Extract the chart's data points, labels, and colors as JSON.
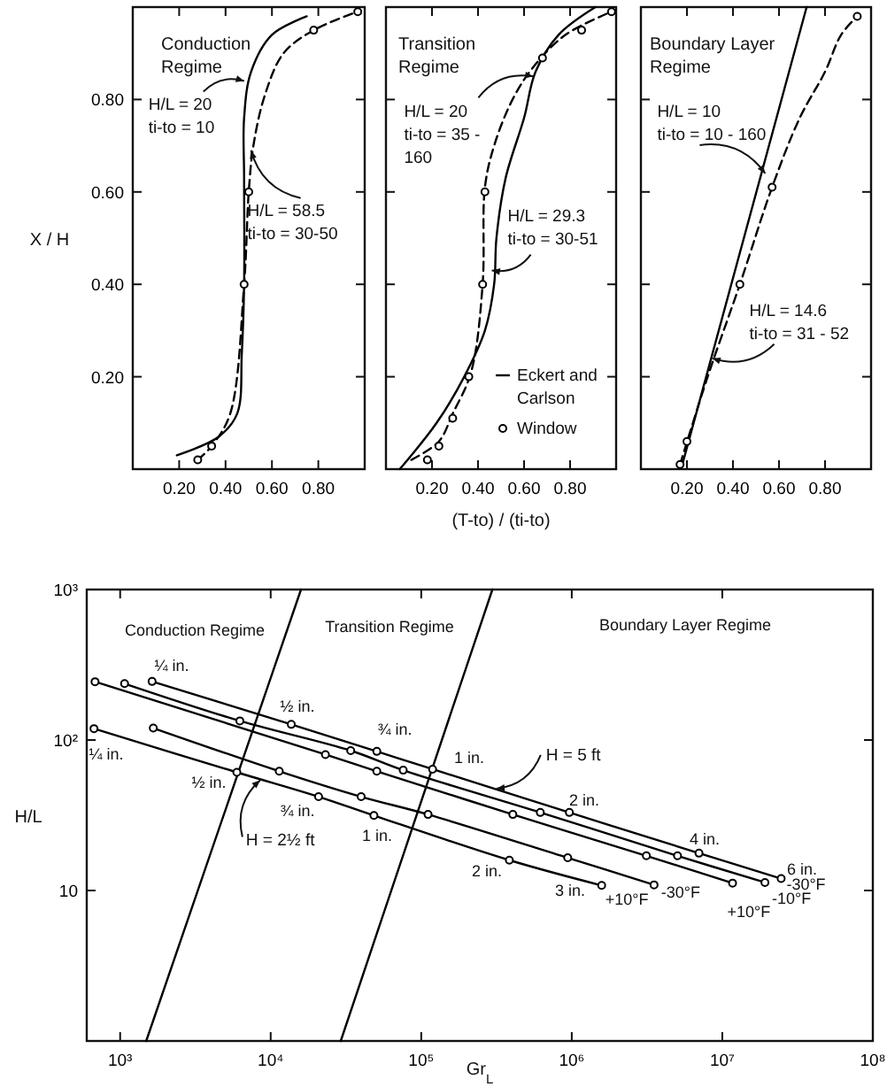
{
  "chart_data": [
    {
      "type": "line",
      "title": "Conduction\nRegime",
      "ylabel": "X / H",
      "xlim": [
        0,
        1
      ],
      "ylim": [
        0,
        1
      ],
      "xticks": [
        {
          "value": 0.2,
          "label": "0.20"
        },
        {
          "value": 0.4,
          "label": "0.40"
        },
        {
          "value": 0.6,
          "label": "0.60"
        },
        {
          "value": 0.8,
          "label": "0.80"
        }
      ],
      "yticks": [
        {
          "value": 0.2,
          "label": "0.20"
        },
        {
          "value": 0.4,
          "label": "0.40"
        },
        {
          "value": 0.6,
          "label": "0.60"
        },
        {
          "value": 0.8,
          "label": "0.80"
        }
      ],
      "series": [
        {
          "color": "#000000",
          "line_style": "solid",
          "x": [
            0.19,
            0.37,
            0.45,
            0.47,
            0.48,
            0.48,
            0.48,
            0.51,
            0.6,
            0.75
          ],
          "values": [
            0.03,
            0.07,
            0.12,
            0.25,
            0.4,
            0.63,
            0.76,
            0.86,
            0.94,
            0.98
          ]
        },
        {
          "color": "#000000",
          "line_style": "dashed",
          "x": [
            0.28,
            0.34,
            0.42,
            0.48,
            0.5,
            0.52,
            0.57,
            0.65,
            0.78,
            0.97
          ],
          "values": [
            0.02,
            0.05,
            0.12,
            0.4,
            0.6,
            0.7,
            0.81,
            0.9,
            0.95,
            0.99
          ]
        },
        {
          "type": "scatter",
          "marker": "circle",
          "color": "#000000",
          "x": [
            0.28,
            0.34,
            0.48,
            0.5,
            0.78,
            0.97
          ],
          "values": [
            0.02,
            0.05,
            0.4,
            0.6,
            0.95,
            0.99
          ]
        }
      ],
      "annotations": [
        {
          "text": "H/L = 20\nti-to = 10",
          "x": 0.48,
          "y": 0.84
        },
        {
          "text": "H/L = 58.5\nti-to = 30-50",
          "x": 0.51,
          "y": 0.69
        }
      ]
    },
    {
      "type": "line",
      "title": "Transition\nRegime",
      "xlabel": "(T-to) / (ti-to)",
      "xlim": [
        0,
        1
      ],
      "ylim": [
        0,
        1
      ],
      "tick_labels": "x",
      "legend": "bottom right",
      "xticks": [
        {
          "value": 0.2,
          "label": "0.20"
        },
        {
          "value": 0.4,
          "label": "0.40"
        },
        {
          "value": 0.6,
          "label": "0.60"
        },
        {
          "value": 0.8,
          "label": "0.80"
        }
      ],
      "yticks": [
        {
          "value": 0.2,
          "label": null
        },
        {
          "value": 0.4,
          "label": null
        },
        {
          "value": 0.6,
          "label": null
        },
        {
          "value": 0.8,
          "label": null
        }
      ],
      "series": [
        {
          "name": "Eckert and Carlson",
          "color": "#000000",
          "line_style": "solid",
          "x": [
            0.06,
            0.22,
            0.34,
            0.43,
            0.47,
            0.48,
            0.52,
            0.6,
            0.65,
            0.75,
            0.91
          ],
          "values": [
            0.0,
            0.1,
            0.2,
            0.3,
            0.4,
            0.5,
            0.63,
            0.76,
            0.86,
            0.94,
            1.0
          ]
        },
        {
          "color": "#000000",
          "line_style": "dashed",
          "x": [
            0.11,
            0.23,
            0.29,
            0.37,
            0.42,
            0.43,
            0.47,
            0.55,
            0.64,
            0.78,
            0.98
          ],
          "values": [
            0.02,
            0.06,
            0.12,
            0.21,
            0.4,
            0.61,
            0.7,
            0.8,
            0.87,
            0.94,
            0.99
          ]
        },
        {
          "name": "Window",
          "type": "scatter",
          "marker": "circle",
          "color": "#000000",
          "x": [
            0.18,
            0.23,
            0.29,
            0.36,
            0.42,
            0.43,
            0.68,
            0.85,
            0.98
          ],
          "values": [
            0.02,
            0.05,
            0.11,
            0.2,
            0.4,
            0.6,
            0.89,
            0.95,
            0.99
          ]
        }
      ],
      "annotations": [
        {
          "text": "H/L = 20\nti-to = 35 -\n160",
          "x": 0.64,
          "y": 0.85
        },
        {
          "text": "H/L = 29.3\nti-to = 30-51",
          "x": 0.46,
          "y": 0.43
        }
      ]
    },
    {
      "type": "line",
      "title": "Boundary Layer\nRegime",
      "xlim": [
        0,
        1
      ],
      "ylim": [
        0,
        1
      ],
      "tick_labels": "x",
      "xticks": [
        {
          "value": 0.2,
          "label": "0.20"
        },
        {
          "value": 0.4,
          "label": "0.40"
        },
        {
          "value": 0.6,
          "label": "0.60"
        },
        {
          "value": 0.8,
          "label": "0.80"
        }
      ],
      "yticks": [
        {
          "value": 0.2,
          "label": null
        },
        {
          "value": 0.4,
          "label": null
        },
        {
          "value": 0.6,
          "label": null
        },
        {
          "value": 0.8,
          "label": null
        }
      ],
      "series": [
        {
          "color": "#000000",
          "line_style": "solid",
          "x": [
            0.18,
            0.72
          ],
          "values": [
            0.01,
            1.0
          ]
        },
        {
          "color": "#000000",
          "line_style": "dashed",
          "x": [
            0.17,
            0.29,
            0.43,
            0.57,
            0.69,
            0.8,
            0.87,
            0.94
          ],
          "values": [
            0.01,
            0.2,
            0.4,
            0.61,
            0.76,
            0.86,
            0.94,
            0.98
          ]
        },
        {
          "type": "scatter",
          "marker": "circle",
          "color": "#000000",
          "x": [
            0.17,
            0.2,
            0.43,
            0.57,
            0.94
          ],
          "values": [
            0.01,
            0.06,
            0.4,
            0.61,
            0.98
          ]
        }
      ],
      "annotations": [
        {
          "text": "H/L = 10\nti-to = 10 - 160",
          "x": 0.54,
          "y": 0.64
        },
        {
          "text": "H/L = 14.6\nti-to = 31 - 52",
          "x": 0.31,
          "y": 0.24
        }
      ]
    },
    {
      "type": "line",
      "xlabel": "Gr$_{L}$",
      "ylabel": "H/L",
      "log": "xy",
      "xlim": [
        600,
        100000000
      ],
      "ylim": [
        1,
        1000
      ],
      "xticks": [
        {
          "value": 1000,
          "label": "10³"
        },
        {
          "value": 10000,
          "label": "10⁴"
        },
        {
          "value": 100000,
          "label": "10⁵"
        },
        {
          "value": 1000000,
          "label": "10⁶"
        },
        {
          "value": 10000000,
          "label": "10⁷"
        },
        {
          "value": 100000000,
          "label": "10⁸"
        }
      ],
      "yticks": [
        10,
        {
          "value": 100,
          "label": "10²"
        },
        {
          "value": 1000,
          "label": "10³"
        }
      ],
      "series": [
        {
          "color": "#000000",
          "x": [
            1490,
            15900
          ],
          "values": [
            1,
            1000
          ]
        },
        {
          "color": "#000000",
          "x": [
            29200,
            297000
          ],
          "values": [
            1,
            1000
          ]
        },
        {
          "name": "-30°F",
          "color": "#000000",
          "marker": "circle",
          "x": [
            1630,
            13700,
            50700,
            119000,
            964000,
            7000000,
            24600000
          ],
          "values": [
            245,
            127,
            84,
            64,
            33,
            17.7,
            12
          ]
        },
        {
          "name": "-10°F",
          "color": "#000000",
          "marker": "circle",
          "x": [
            1070,
            6240,
            34000,
            75900,
            618000,
            5040000,
            19200000
          ],
          "values": [
            237,
            134,
            85,
            63,
            33,
            17,
            11.3
          ]
        },
        {
          "name": "+10°F",
          "color": "#000000",
          "marker": "circle",
          "x": [
            681,
            23100,
            50700,
            406000,
            3130000,
            11700000
          ],
          "values": [
            244,
            80,
            62,
            32,
            17,
            11.2
          ]
        },
        {
          "name": "-30°F",
          "color": "#000000",
          "marker": "circle",
          "x": [
            1660,
            11400,
            39900,
            111000,
            940000,
            3520000
          ],
          "values": [
            120,
            62,
            42,
            32,
            16.5,
            10.9
          ]
        },
        {
          "name": "+10°F",
          "color": "#000000",
          "marker": "circle",
          "x": [
            670,
            5960,
            20800,
            48500,
            385000,
            1580000
          ],
          "values": [
            119,
            61,
            42,
            31.5,
            15.9,
            10.8
          ]
        }
      ],
      "annotations": [
        "Conduction Regime",
        "Transition Regime",
        "Boundary Layer Regime",
        "¼ in.",
        "½ in.",
        "¾ in.",
        "1 in.",
        "2 in.",
        "4 in.",
        "6 in.",
        "¼ in.",
        "½ in.",
        "¾ in.",
        "1 in.",
        "2 in.",
        "3 in.",
        {
          "text": "H = 5 ft",
          "x": 316000,
          "y": 47.5
        },
        {
          "text": "H = 2½ ft",
          "x": 8510,
          "y": 54
        }
      ]
    }
  ]
}
